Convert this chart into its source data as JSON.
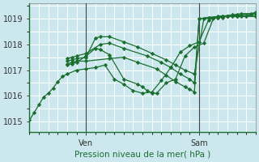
{
  "bg_color": "#cce8ee",
  "grid_color": "#ffffff",
  "line_color": "#1a6e2e",
  "marker_color": "#1a6e2e",
  "xlabel": "Pression niveau de la mer( hPa )",
  "ylim": [
    1014.6,
    1019.6
  ],
  "xlim": [
    0,
    24
  ],
  "yticks": [
    1015,
    1016,
    1017,
    1018,
    1019
  ],
  "ven_x": 6.0,
  "sam_x": 18.0,
  "series": [
    {
      "x": [
        0.0,
        0.5,
        1.0,
        1.5,
        2.0,
        2.5,
        3.0,
        3.5,
        4.0,
        5.0,
        6.0,
        7.0,
        8.0,
        9.0,
        10.0,
        11.0,
        12.0,
        13.0,
        14.0,
        15.0,
        16.0,
        17.0,
        18.0,
        19.0,
        20.0,
        21.0,
        22.0,
        23.0,
        24.0
      ],
      "y": [
        1015.05,
        1015.35,
        1015.65,
        1015.95,
        1016.1,
        1016.3,
        1016.55,
        1016.75,
        1016.85,
        1017.0,
        1017.05,
        1017.1,
        1017.2,
        1016.65,
        1016.45,
        1016.2,
        1016.1,
        1016.15,
        1016.6,
        1017.1,
        1017.7,
        1017.95,
        1018.1,
        1018.95,
        1019.1,
        1019.1,
        1019.1,
        1019.1,
        1019.1
      ],
      "marker": "D",
      "ms": 2.2
    },
    {
      "x": [
        4.0,
        4.5,
        5.0,
        6.0,
        8.5,
        10.0,
        11.5,
        13.5,
        14.5,
        15.5,
        16.5,
        17.0,
        17.5,
        18.0,
        19.0,
        20.5,
        21.5,
        22.5,
        24.0
      ],
      "y": [
        1017.25,
        1017.3,
        1017.35,
        1017.35,
        1017.45,
        1017.5,
        1017.3,
        1017.05,
        1016.8,
        1016.55,
        1016.35,
        1016.25,
        1016.15,
        1019.0,
        1019.05,
        1019.1,
        1019.1,
        1019.1,
        1019.1
      ],
      "marker": "D",
      "ms": 2.2
    },
    {
      "x": [
        4.0,
        4.5,
        5.0,
        6.0,
        7.5,
        8.5,
        10.0,
        12.5,
        14.0,
        15.0,
        16.0,
        17.0,
        17.5,
        18.0,
        19.0,
        20.5,
        21.5,
        22.5,
        24.0
      ],
      "y": [
        1017.45,
        1017.5,
        1017.55,
        1017.65,
        1018.0,
        1018.05,
        1017.85,
        1017.55,
        1017.3,
        1017.1,
        1016.85,
        1016.65,
        1016.5,
        1019.0,
        1019.05,
        1019.1,
        1019.15,
        1019.2,
        1019.2
      ],
      "marker": "D",
      "ms": 2.2
    },
    {
      "x": [
        4.0,
        4.5,
        5.0,
        6.0,
        7.0,
        7.5,
        8.5,
        10.0,
        11.5,
        13.0,
        14.5,
        15.5,
        16.5,
        17.5,
        18.5,
        20.0,
        21.0,
        22.0,
        23.5,
        24.0
      ],
      "y": [
        1017.35,
        1017.4,
        1017.45,
        1017.5,
        1018.25,
        1018.3,
        1018.3,
        1018.1,
        1017.9,
        1017.65,
        1017.4,
        1017.2,
        1017.0,
        1016.85,
        1019.0,
        1019.05,
        1019.1,
        1019.15,
        1019.2,
        1019.25
      ],
      "marker": "D",
      "ms": 2.2
    },
    {
      "x": [
        4.0,
        4.5,
        5.0,
        6.0,
        7.0,
        7.5,
        8.5,
        10.0,
        11.5,
        12.0,
        12.5,
        13.0,
        13.5,
        14.5,
        15.5,
        16.5,
        17.5,
        18.5,
        19.5,
        20.0,
        20.5,
        21.0,
        22.0,
        23.5,
        24.0
      ],
      "y": [
        1017.2,
        1017.25,
        1017.3,
        1017.55,
        1017.85,
        1017.8,
        1017.6,
        1016.65,
        1016.45,
        1016.35,
        1016.2,
        1016.1,
        1016.1,
        1016.5,
        1016.65,
        1017.55,
        1017.9,
        1018.05,
        1019.0,
        1019.05,
        1019.05,
        1019.1,
        1019.1,
        1019.15,
        1019.2
      ],
      "marker": "D",
      "ms": 2.2
    }
  ]
}
